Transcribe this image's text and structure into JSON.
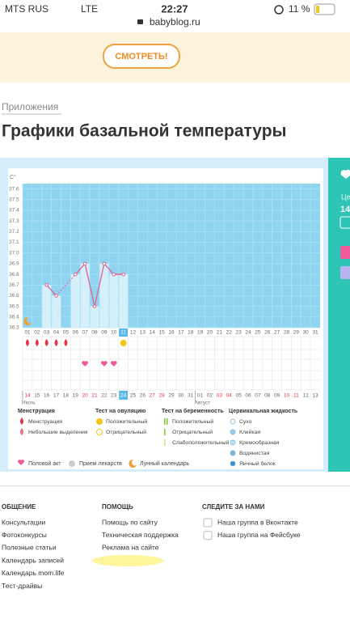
{
  "status_bar": {
    "carrier": "MTS RUS",
    "network": "LTE",
    "time": "22:27",
    "url": "babyblog.ru",
    "battery": "11 %"
  },
  "banner": {
    "button": "СМОТРЕТЬ!"
  },
  "breadcrumb": "Приложения",
  "title": "Графики базальной температуры",
  "chart": {
    "type": "line",
    "unit": "С°",
    "ylim": [
      36.3,
      37.65
    ],
    "yticks": [
      36.3,
      36.4,
      36.5,
      36.6,
      36.7,
      36.8,
      36.9,
      {
        "value": 37,
        "label": "37.0"
      },
      37.1,
      37.2,
      37.3,
      37.4,
      37.5,
      37.6
    ],
    "days": [
      "01",
      "02",
      "03",
      "04",
      "05",
      "06",
      "07",
      "08",
      "09",
      "10",
      "11",
      "12",
      "13",
      "14",
      "15",
      "16",
      "17",
      "18",
      "19",
      "20",
      "21",
      "22",
      "23",
      "24",
      "25",
      "26",
      "27",
      "28",
      "29",
      "30",
      "31"
    ],
    "today": "11",
    "temperature": [
      null,
      null,
      36.7,
      36.6,
      null,
      36.8,
      36.9,
      36.5,
      36.9,
      36.8,
      36.8,
      null,
      null,
      null,
      null,
      null,
      null,
      null,
      null,
      null,
      null,
      null,
      null,
      null,
      null,
      null,
      null,
      null,
      null,
      null,
      null
    ],
    "dates": [
      "14",
      "15",
      "16",
      "17",
      "18",
      "19",
      "20",
      "21",
      "22",
      "23",
      "24",
      "25",
      "26",
      "27",
      "28",
      "29",
      "30",
      "31",
      "01",
      "02",
      "03",
      "04",
      "05",
      "06",
      "07",
      "08",
      "09",
      "10",
      "11",
      "12",
      "13"
    ],
    "weekend": [
      true,
      false,
      false,
      false,
      false,
      false,
      true,
      true,
      false,
      false,
      false,
      false,
      false,
      true,
      true,
      false,
      false,
      false,
      false,
      false,
      true,
      true,
      false,
      false,
      false,
      false,
      false,
      true,
      true,
      false,
      false
    ],
    "current_date": "24",
    "months": [
      {
        "name": "Июль",
        "first_day": "14"
      },
      {
        "name": "Август",
        "first_day": "01"
      }
    ],
    "menstruation": [
      "01",
      "02",
      "03",
      "04",
      "05"
    ],
    "ovulation_positive": [
      "11"
    ],
    "intercourse": [
      "07",
      "09",
      "10"
    ],
    "lunar": [
      "01"
    ],
    "colors": {
      "plot": "#8fd4f0",
      "bar": "#d6f0fb",
      "line": "#e0608f",
      "drop": "#e8334a",
      "heart": "#ef5a9a",
      "ovulation": "#f5c518",
      "weekend": "#e0334a",
      "highlight": "#5bb8e6"
    }
  },
  "legend": {
    "groups": [
      {
        "title": "Менструация",
        "items": [
          "Менструация",
          "Небольшие выделения"
        ]
      },
      {
        "title": "Тест на овуляцию",
        "items": [
          "Положительный",
          "Отрицательный"
        ]
      },
      {
        "title": "Тест на беременность",
        "items": [
          "Положительный",
          "Отрицательный",
          "Слабоположительный"
        ]
      },
      {
        "title": "Цервикальная жидкость",
        "items": [
          "Сухо",
          "Клейкая",
          "Кремообразная",
          "Водянистая",
          "Яичный белок"
        ]
      }
    ],
    "extra": [
      "Половой акт",
      "Прием лекарств",
      "Лунный календарь"
    ]
  },
  "side_panel": {
    "label": "Це",
    "value": "14"
  },
  "footer": {
    "columns": [
      {
        "title": "ОБЩЕНИЕ",
        "links": [
          "Консультации",
          "Фотоконкурсы",
          "Полезные статьи",
          "Календарь записей",
          "Календарь mom.life",
          "Тест-драйвы"
        ]
      },
      {
        "title": "ПОМОЩЬ",
        "links": [
          "Помощь по сайту",
          "Техническая поддержка",
          "Реклама на сайте"
        ]
      },
      {
        "title": "СЛЕДИТЕ ЗА НАМИ",
        "links": [
          "Наша группа в Вконтакте",
          "Наша группа на Фейсбуке"
        ]
      }
    ]
  }
}
